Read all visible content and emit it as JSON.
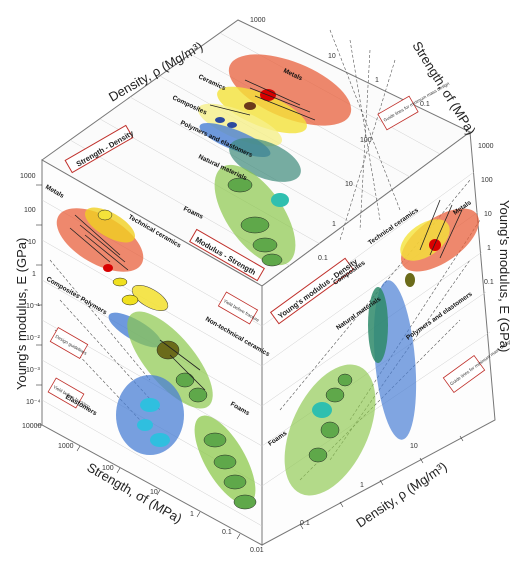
{
  "faces": {
    "top": {
      "title": "Strength - Density"
    },
    "left": {
      "title": "Modulus - Strength"
    },
    "right": {
      "title": "Young's modulus - Density"
    }
  },
  "axes": {
    "density_top": "Density, ρ  (Mg/m³)",
    "strength_top": "Strength, σf  (MPa)",
    "modulus_left": "Young's modulus, E (GPa)",
    "strength_bottom": "Strength, σf (MPa)",
    "density_bottom": "Density, ρ  (Mg/m³)",
    "modulus_right": "Young's modulus, E (GPa)"
  },
  "ticks": {
    "density_top": [
      "1000",
      "10",
      "1",
      "0.1"
    ],
    "strength_top_right": [
      "100",
      "10",
      "1",
      "0.1"
    ],
    "modulus_left": [
      "1000",
      "100",
      "10",
      "1",
      "10⁻¹",
      "10⁻²",
      "10⁻³",
      "10⁻⁴"
    ],
    "strength_bottom": [
      "10000",
      "1000",
      "100",
      "10",
      "1",
      "0.1",
      "0.01"
    ],
    "density_bottom": [
      "0.1",
      "1",
      "10"
    ],
    "modulus_right": [
      "1000",
      "100",
      "10",
      "1",
      "0.1"
    ]
  },
  "families": {
    "metals": "Metals",
    "ceramics": "Ceramics",
    "composites": "Composites",
    "polymers": "Polymers and elastomers",
    "natural": "Natural materials",
    "foams": "Foams",
    "tech_ceramics": "Technical ceramics",
    "non_tech_ceramics": "Non-technical ceramics",
    "elastomers": "Elastomers",
    "polymers_short": "Polymers",
    "composites_right": "Composites"
  },
  "guides": {
    "top": "Guide lines for minimum mass design",
    "left_a": "Design guidelines",
    "left_b": "Yield before buckling",
    "right": "Guide lines for minimum mass design",
    "center": "Yield before fracture"
  },
  "colors": {
    "metals": "#e8603c",
    "ceramics": "#f4e23a",
    "composites": "#f6f08a",
    "polymers": "#4a7fd4",
    "natural": "#5fa84a",
    "foams": "#8cc84b",
    "tech": "#f0d020"
  }
}
